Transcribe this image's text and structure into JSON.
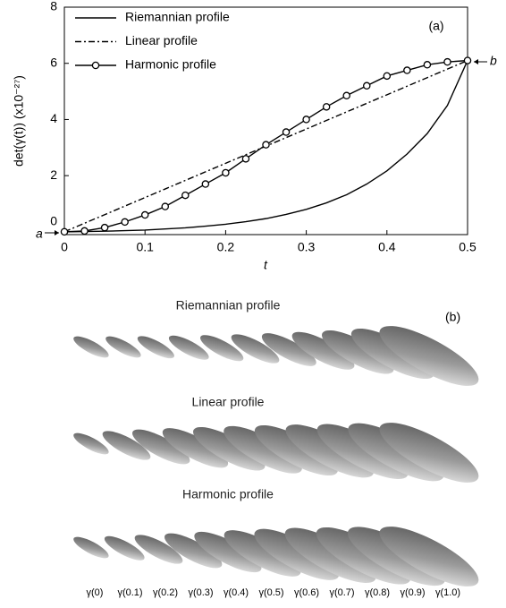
{
  "chart_data": {
    "type": "line",
    "ylabel": "det(γ(t)) (x10⁻²⁷)",
    "xlabel": "t",
    "x": [
      0,
      0.025,
      0.05,
      0.075,
      0.1,
      0.125,
      0.15,
      0.175,
      0.2,
      0.225,
      0.25,
      0.275,
      0.3,
      0.325,
      0.35,
      0.375,
      0.4,
      0.425,
      0.45,
      0.475,
      0.5
    ],
    "series": [
      {
        "name": "Riemannian profile",
        "color": "#000000",
        "style": "solid",
        "marker": "none",
        "values": [
          0,
          0.01,
          0.02,
          0.04,
          0.06,
          0.1,
          0.14,
          0.2,
          0.27,
          0.36,
          0.47,
          0.62,
          0.8,
          1.03,
          1.32,
          1.7,
          2.17,
          2.77,
          3.5,
          4.5,
          6.1
        ]
      },
      {
        "name": "Linear profile",
        "color": "#000000",
        "style": "dashdot",
        "marker": "none",
        "values": [
          0,
          0.305,
          0.61,
          0.915,
          1.22,
          1.525,
          1.83,
          2.135,
          2.44,
          2.745,
          3.05,
          3.355,
          3.66,
          3.965,
          4.27,
          4.575,
          4.88,
          5.185,
          5.49,
          5.795,
          6.1
        ]
      },
      {
        "name": "Harmonic profile",
        "color": "#000000",
        "style": "solid",
        "marker": "circle",
        "values": [
          0,
          0.03,
          0.15,
          0.35,
          0.6,
          0.9,
          1.3,
          1.7,
          2.1,
          2.6,
          3.1,
          3.55,
          4.0,
          4.45,
          4.85,
          5.2,
          5.55,
          5.75,
          5.95,
          6.05,
          6.1
        ]
      }
    ],
    "xlim": [
      0,
      0.5
    ],
    "xticks": [
      0,
      0.1,
      0.2,
      0.3,
      0.4,
      0.5
    ],
    "ylim": [
      -0.1,
      8
    ],
    "yticks": [
      0,
      2,
      4,
      6,
      8
    ],
    "legend": "upper-left",
    "annotations": [
      "(a)",
      "a",
      "b"
    ]
  },
  "panel_b": {
    "label": "(b)",
    "rows": [
      "Riemannian profile",
      "Linear profile",
      "Harmonic profile"
    ],
    "captions": [
      "γ(0)",
      "γ(0.1)",
      "γ(0.2)",
      "γ(0.3)",
      "γ(0.4)",
      "γ(0.5)",
      "γ(0.6)",
      "γ(0.7)",
      "γ(0.8)",
      "γ(0.9)",
      "γ(1.0)"
    ]
  }
}
